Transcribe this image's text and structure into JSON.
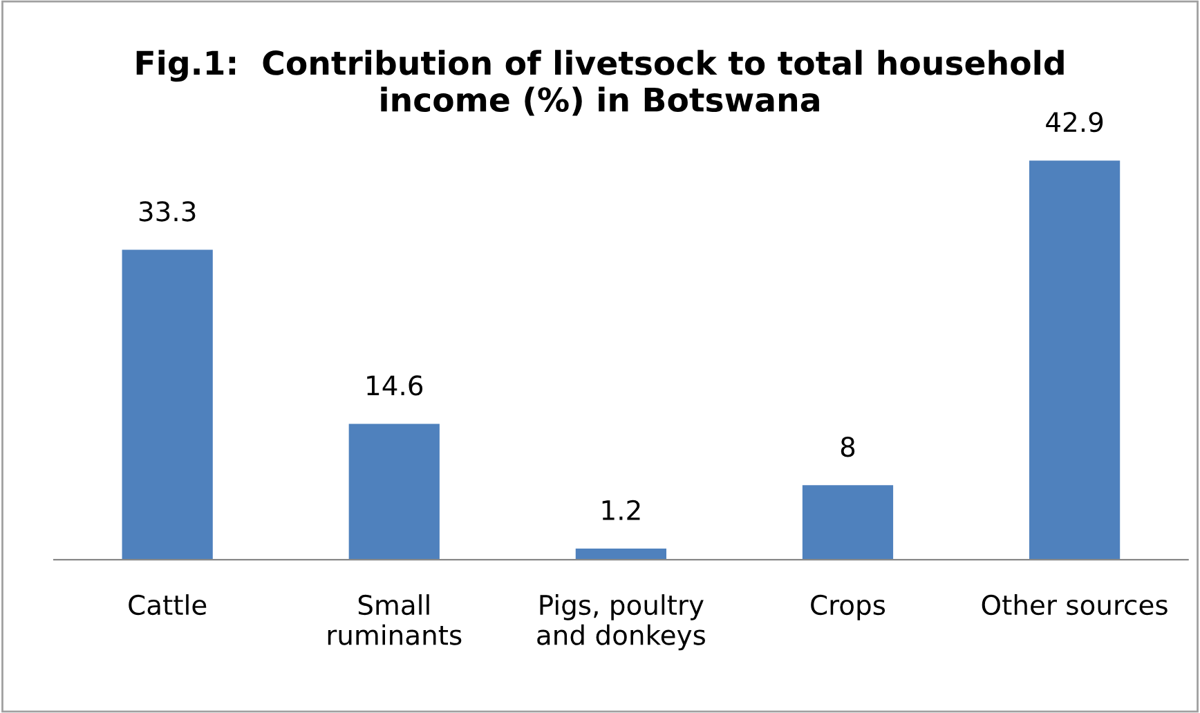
{
  "chart_data": {
    "type": "bar",
    "title": "Fig.1:  Contribution of livetsock to total household\nincome (%) in Botswana",
    "categories": [
      "Cattle",
      "Small\nruminants",
      "Pigs, poultry\nand donkeys",
      "Crops",
      "Other sources"
    ],
    "values": [
      33.3,
      14.6,
      1.2,
      8,
      42.9
    ],
    "color": "#4f81bd",
    "data_labels": true,
    "grid": false,
    "legend": false
  }
}
